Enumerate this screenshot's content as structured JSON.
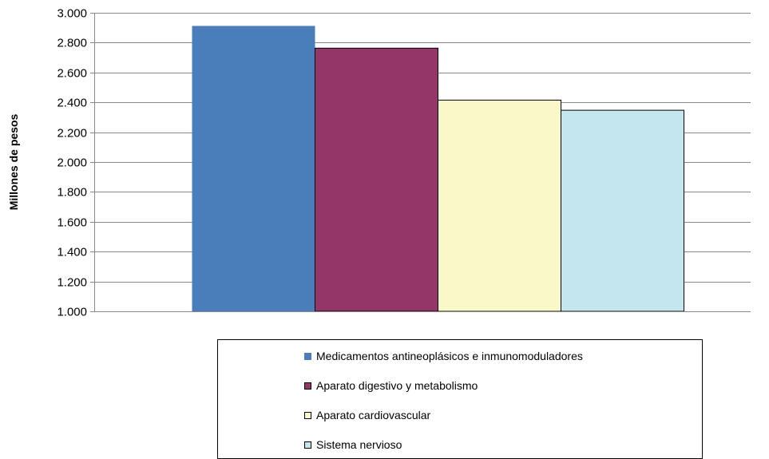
{
  "chart_data": {
    "type": "bar",
    "categories": [
      ""
    ],
    "series": [
      {
        "name": "Medicamentos antineoplásicos e inmunomoduladores",
        "values": [
          2912
        ],
        "color": "#4a7ebb"
      },
      {
        "name": "Aparato digestivo y metabolismo",
        "values": [
          2763
        ],
        "color": "#943768"
      },
      {
        "name": "Aparato cardiovascular",
        "values": [
          2415
        ],
        "color": "#f8f8c8"
      },
      {
        "name": "Sistema nervioso",
        "values": [
          2347
        ],
        "color": "#c4e6ee"
      }
    ],
    "ylabel": "Millones de pesos",
    "ylim": [
      1000,
      3000
    ],
    "yticks": [
      1000,
      1200,
      1400,
      1600,
      1800,
      2000,
      2200,
      2400,
      2600,
      2800,
      3000
    ],
    "ytick_labels": [
      "1.000",
      "1.200",
      "1.400",
      "1.600",
      "1.800",
      "2.000",
      "2.200",
      "2.400",
      "2.600",
      "2.800",
      "3.000"
    ],
    "grid": true,
    "legend_position": "bottom"
  }
}
